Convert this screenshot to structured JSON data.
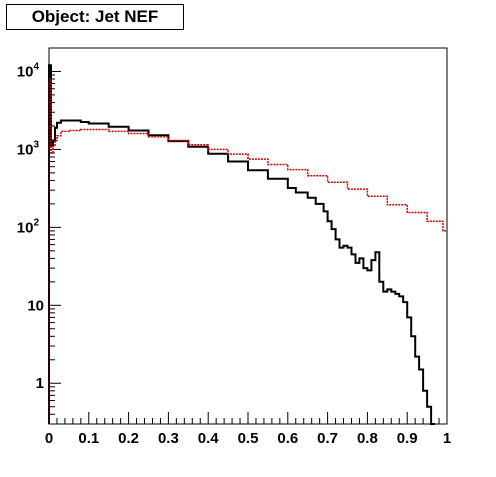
{
  "chart_data": {
    "type": "line",
    "title": "Object: Jet NEF",
    "xlim": [
      0,
      1
    ],
    "ylim": [
      0.3,
      20000
    ],
    "y_scale": "log",
    "grid": false,
    "legend": "none",
    "x_tick_labels": [
      "0",
      "0.1",
      "0.2",
      "0.3",
      "0.4",
      "0.5",
      "0.6",
      "0.7",
      "0.8",
      "0.9",
      "1"
    ],
    "y_tick_labels": [
      {
        "value": 10000,
        "base": "10",
        "exp": "4"
      },
      {
        "value": 1000,
        "base": "10",
        "exp": "3"
      },
      {
        "value": 100,
        "base": "10",
        "exp": "2"
      },
      {
        "value": 10,
        "base": "10",
        "exp": ""
      },
      {
        "value": 1,
        "base": "1",
        "exp": ""
      }
    ],
    "series": [
      {
        "color": "#000000",
        "style": "step",
        "points": [
          [
            0.0,
            12000
          ],
          [
            0.005,
            1100
          ],
          [
            0.01,
            1300
          ],
          [
            0.015,
            1900
          ],
          [
            0.02,
            2200
          ],
          [
            0.03,
            2350
          ],
          [
            0.05,
            2350
          ],
          [
            0.08,
            2250
          ],
          [
            0.1,
            2150
          ],
          [
            0.15,
            1950
          ],
          [
            0.2,
            1750
          ],
          [
            0.25,
            1520
          ],
          [
            0.3,
            1280
          ],
          [
            0.35,
            1080
          ],
          [
            0.4,
            880
          ],
          [
            0.45,
            700
          ],
          [
            0.5,
            540
          ],
          [
            0.55,
            420
          ],
          [
            0.6,
            320
          ],
          [
            0.62,
            280
          ],
          [
            0.65,
            240
          ],
          [
            0.67,
            200
          ],
          [
            0.69,
            160
          ],
          [
            0.7,
            120
          ],
          [
            0.71,
            95
          ],
          [
            0.72,
            70
          ],
          [
            0.73,
            55
          ],
          [
            0.74,
            58
          ],
          [
            0.75,
            55
          ],
          [
            0.76,
            45
          ],
          [
            0.77,
            35
          ],
          [
            0.78,
            40
          ],
          [
            0.79,
            30
          ],
          [
            0.8,
            28
          ],
          [
            0.81,
            38
          ],
          [
            0.82,
            48
          ],
          [
            0.83,
            20
          ],
          [
            0.84,
            15
          ],
          [
            0.85,
            16
          ],
          [
            0.86,
            15
          ],
          [
            0.87,
            14
          ],
          [
            0.88,
            13
          ],
          [
            0.89,
            11
          ],
          [
            0.9,
            7
          ],
          [
            0.91,
            4
          ],
          [
            0.92,
            2.2
          ],
          [
            0.93,
            1.5
          ],
          [
            0.94,
            0.8
          ],
          [
            0.95,
            0.5
          ],
          [
            0.96,
            0.1
          ]
        ]
      },
      {
        "color": "#cc0000",
        "style": "step",
        "points": [
          [
            0.0,
            8000
          ],
          [
            0.005,
            900
          ],
          [
            0.01,
            1100
          ],
          [
            0.015,
            1300
          ],
          [
            0.02,
            1500
          ],
          [
            0.03,
            1700
          ],
          [
            0.05,
            1750
          ],
          [
            0.08,
            1800
          ],
          [
            0.1,
            1800
          ],
          [
            0.15,
            1700
          ],
          [
            0.2,
            1600
          ],
          [
            0.25,
            1450
          ],
          [
            0.3,
            1300
          ],
          [
            0.35,
            1150
          ],
          [
            0.4,
            1000
          ],
          [
            0.45,
            870
          ],
          [
            0.5,
            750
          ],
          [
            0.55,
            640
          ],
          [
            0.6,
            550
          ],
          [
            0.65,
            460
          ],
          [
            0.7,
            380
          ],
          [
            0.75,
            310
          ],
          [
            0.8,
            250
          ],
          [
            0.85,
            195
          ],
          [
            0.9,
            155
          ],
          [
            0.95,
            120
          ],
          [
            0.99,
            90
          ],
          [
            1.0,
            90
          ]
        ]
      }
    ]
  }
}
